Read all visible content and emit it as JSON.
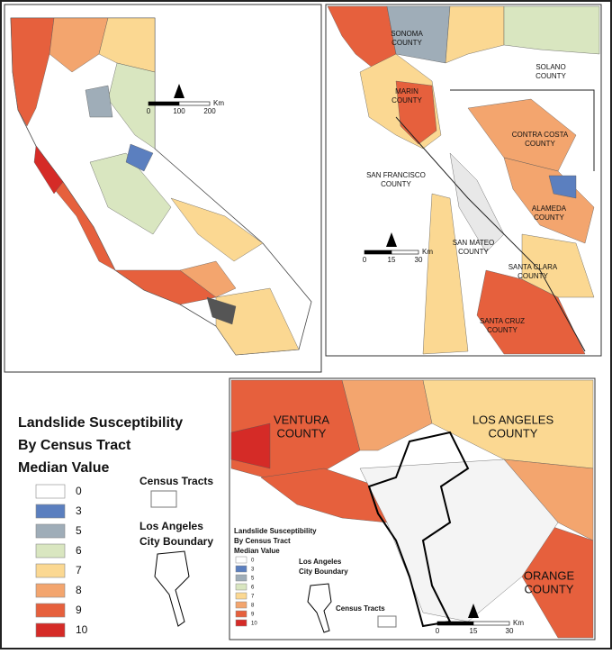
{
  "legend": {
    "title": [
      "Landslide Susceptibility",
      "By Census Tract",
      "Median Value"
    ],
    "items": [
      {
        "value": 0,
        "color": "#ffffff"
      },
      {
        "value": 3,
        "color": "#5b7fbf"
      },
      {
        "value": 5,
        "color": "#9fadb8"
      },
      {
        "value": 6,
        "color": "#d9e6c0"
      },
      {
        "value": 7,
        "color": "#fbd892"
      },
      {
        "value": 8,
        "color": "#f3a56e"
      },
      {
        "value": 9,
        "color": "#e6603d"
      },
      {
        "value": 10,
        "color": "#d52b27"
      }
    ],
    "census_tracts": "Census Tracts",
    "city_boundary": [
      "Los Angeles",
      "City Boundary"
    ]
  },
  "california_map": {
    "scale": {
      "ticks": [
        0,
        100,
        200
      ],
      "unit": "Km"
    }
  },
  "bay_area_map": {
    "labels": [
      [
        "SONOMA",
        "COUNTY"
      ],
      [
        "SOLANO",
        "COUNTY"
      ],
      [
        "MARIN",
        "COUNTY"
      ],
      [
        "CONTRA COSTA",
        "COUNTY"
      ],
      [
        "SAN FRANCISCO",
        "COUNTY"
      ],
      [
        "ALAMEDA",
        "COUNTY"
      ],
      [
        "SAN MATEO",
        "COUNTY"
      ],
      [
        "SANTA CLARA",
        "COUNTY"
      ],
      [
        "SANTA CRUZ",
        "COUNTY"
      ]
    ],
    "scale": {
      "ticks": [
        0,
        15,
        30
      ],
      "unit": "Km"
    }
  },
  "la_map": {
    "labels": [
      [
        "VENTURA",
        "COUNTY"
      ],
      [
        "LOS ANGELES",
        "COUNTY"
      ],
      [
        "ORANGE",
        "COUNTY"
      ]
    ],
    "inset_legend": {
      "title": [
        "Landslide Susceptibility",
        "By Census Tract",
        "Median Value"
      ],
      "city_boundary": [
        "Los Angeles",
        "City Boundary"
      ],
      "census_tracts": "Census Tracts"
    },
    "scale": {
      "ticks": [
        0,
        15,
        30
      ],
      "unit": "Km"
    }
  }
}
